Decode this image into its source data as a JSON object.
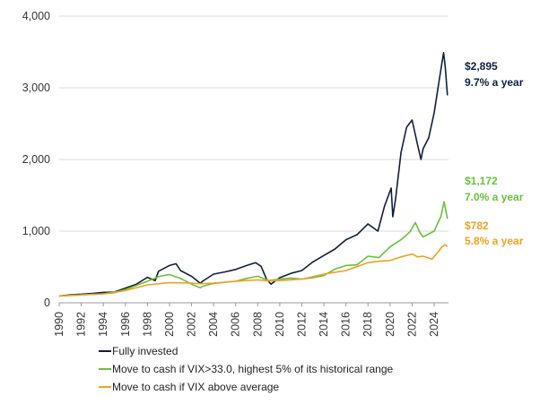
{
  "chart_data": {
    "type": "line",
    "xlim": [
      1990,
      2025.3
    ],
    "ylim": [
      0,
      4000
    ],
    "y_ticks": [
      {
        "value": 0,
        "label": "0"
      },
      {
        "value": 1000,
        "label": "1,000"
      },
      {
        "value": 2000,
        "label": "2,000"
      },
      {
        "value": 3000,
        "label": "3,000"
      },
      {
        "value": 4000,
        "label": "4,000"
      }
    ],
    "x_ticks": [
      "1990",
      "1992",
      "1994",
      "1996",
      "1998",
      "2000",
      "2002",
      "2004",
      "2006",
      "2008",
      "2010",
      "2012",
      "2014",
      "2016",
      "2018",
      "2020",
      "2022",
      "2024"
    ],
    "grid": "horizontal",
    "legend_position": "bottom",
    "series": [
      {
        "name": "Fully invested",
        "color": "#0f1f3d",
        "end_label": "$2,895",
        "end_rate": "9.7% a year",
        "x": [
          1990,
          1991,
          1992,
          1993,
          1994,
          1995,
          1996,
          1997,
          1998,
          1998.7,
          1999,
          2000,
          2000.6,
          2001,
          2002,
          2002.8,
          2003,
          2004,
          2005,
          2006,
          2007,
          2007.8,
          2008.3,
          2008.8,
          2009.2,
          2010,
          2011,
          2012,
          2013,
          2014,
          2015,
          2016,
          2017,
          2018,
          2018.9,
          2019.5,
          2020.1,
          2020.25,
          2020.5,
          2021,
          2021.5,
          2022,
          2022.5,
          2022.8,
          2023,
          2023.5,
          2024,
          2024.5,
          2024.85,
          2025,
          2025.2
        ],
        "y": [
          95,
          110,
          120,
          130,
          145,
          150,
          205,
          260,
          355,
          310,
          440,
          520,
          545,
          450,
          370,
          270,
          300,
          400,
          430,
          465,
          520,
          560,
          510,
          330,
          260,
          350,
          410,
          450,
          570,
          660,
          750,
          880,
          950,
          1100,
          1000,
          1350,
          1600,
          1200,
          1450,
          2100,
          2450,
          2550,
          2200,
          2000,
          2150,
          2300,
          2650,
          3150,
          3490,
          3300,
          2895
        ]
      },
      {
        "name": "Move to cash if VIX>33.0, highest 5% of its historical range",
        "color": "#6bbf3b",
        "end_label": "$1,172",
        "end_rate": "7.0% a year",
        "x": [
          1990,
          1992,
          1994,
          1995,
          1996,
          1998,
          1999,
          2000,
          2001,
          2002,
          2002.8,
          2003,
          2004,
          2006,
          2007,
          2008,
          2009,
          2010,
          2011,
          2012,
          2013,
          2014,
          2015,
          2016,
          2017,
          2018,
          2019,
          2020,
          2021,
          2021.8,
          2022.3,
          2022.7,
          2023,
          2024,
          2024.6,
          2024.9,
          2025.2
        ],
        "y": [
          95,
          110,
          125,
          140,
          185,
          300,
          365,
          395,
          340,
          260,
          210,
          230,
          270,
          300,
          340,
          370,
          310,
          330,
          345,
          330,
          350,
          380,
          470,
          520,
          530,
          650,
          630,
          780,
          880,
          990,
          1120,
          980,
          920,
          1000,
          1200,
          1410,
          1172
        ]
      },
      {
        "name": "Move to cash if VIX above average",
        "color": "#f0a020",
        "end_label": "$782",
        "end_rate": "5.8% a year",
        "x": [
          1990,
          1992,
          1994,
          1996,
          1998,
          2000,
          2002,
          2002.8,
          2004,
          2006,
          2008,
          2009,
          2010,
          2012,
          2014,
          2016,
          2018,
          2019,
          2020,
          2021,
          2022,
          2022.5,
          2023,
          2023.8,
          2024.3,
          2024.7,
          2025,
          2025.2
        ],
        "y": [
          95,
          110,
          125,
          170,
          250,
          280,
          275,
          265,
          275,
          300,
          320,
          305,
          310,
          330,
          400,
          450,
          560,
          580,
          590,
          640,
          680,
          640,
          650,
          610,
          700,
          780,
          810,
          782
        ]
      }
    ]
  }
}
